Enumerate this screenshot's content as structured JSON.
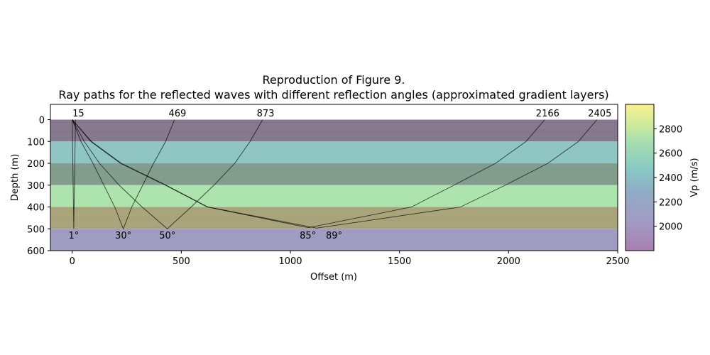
{
  "chart_data": {
    "type": "line",
    "title": "Reproduction of Figure 9.",
    "subtitle": "Ray paths for the reflected waves with different reflection angles (approximated gradient layers)",
    "xlabel": "Offset (m)",
    "ylabel": "Depth (m)",
    "xlim": [
      -100,
      2500
    ],
    "ylim": [
      600,
      0
    ],
    "xticks": [
      0,
      500,
      1000,
      1500,
      2000,
      2500
    ],
    "yticks": [
      0,
      100,
      200,
      300,
      400,
      500,
      600
    ],
    "grid": false,
    "layers": [
      {
        "top": 0,
        "bottom": 100,
        "color": "#8e8095",
        "gradient": true
      },
      {
        "top": 100,
        "bottom": 200,
        "color": "#8fc6c4",
        "gradient": false
      },
      {
        "top": 200,
        "bottom": 300,
        "color": "#8aa796",
        "gradient": true
      },
      {
        "top": 300,
        "bottom": 400,
        "color": "#ade3ac",
        "gradient": false
      },
      {
        "top": 400,
        "bottom": 500,
        "color": "#b3ae82",
        "gradient": true
      },
      {
        "top": 500,
        "bottom": 600,
        "color": "#a09bc0",
        "gradient": false
      }
    ],
    "rays": [
      {
        "angle_label": "1°",
        "receiver_label": "15",
        "points": [
          [
            0,
            0
          ],
          [
            7,
            500
          ],
          [
            15,
            0
          ]
        ]
      },
      {
        "angle_label": "30°",
        "receiver_label": "469",
        "points": [
          [
            0,
            0
          ],
          [
            40,
            100
          ],
          [
            95,
            200
          ],
          [
            145,
            300
          ],
          [
            195,
            400
          ],
          [
            234,
            500
          ],
          [
            273,
            400
          ],
          [
            323,
            300
          ],
          [
            373,
            200
          ],
          [
            428,
            100
          ],
          [
            469,
            0
          ]
        ]
      },
      {
        "angle_label": "50°",
        "receiver_label": "873",
        "points": [
          [
            0,
            0
          ],
          [
            55,
            100
          ],
          [
            125,
            200
          ],
          [
            215,
            300
          ],
          [
            320,
            400
          ],
          [
            436,
            500
          ],
          [
            545,
            400
          ],
          [
            650,
            300
          ],
          [
            745,
            200
          ],
          [
            815,
            100
          ],
          [
            873,
            0
          ]
        ]
      },
      {
        "angle_label": "85°",
        "receiver_label": "2166",
        "points": [
          [
            0,
            0
          ],
          [
            85,
            100
          ],
          [
            221,
            200
          ],
          [
            426,
            300
          ],
          [
            618,
            400
          ],
          [
            1083,
            495
          ],
          [
            1555,
            400
          ],
          [
            1750,
            300
          ],
          [
            1940,
            200
          ],
          [
            2080,
            100
          ],
          [
            2166,
            0
          ]
        ]
      },
      {
        "angle_label": "89°",
        "receiver_label": "2405",
        "points": [
          [
            0,
            0
          ],
          [
            88,
            100
          ],
          [
            225,
            200
          ],
          [
            430,
            300
          ],
          [
            622,
            400
          ],
          [
            1120,
            497
          ],
          [
            1780,
            400
          ],
          [
            1985,
            300
          ],
          [
            2180,
            200
          ],
          [
            2320,
            100
          ],
          [
            2405,
            0
          ]
        ]
      }
    ],
    "angle_label_positions": [
      7,
      234,
      436,
      1080,
      1200
    ],
    "colorbar": {
      "label": "Vp (m/s)",
      "range": [
        1800,
        3000
      ],
      "ticks": [
        2000,
        2200,
        2400,
        2600,
        2800
      ],
      "colormap": "viridis",
      "alpha": 0.5
    }
  }
}
